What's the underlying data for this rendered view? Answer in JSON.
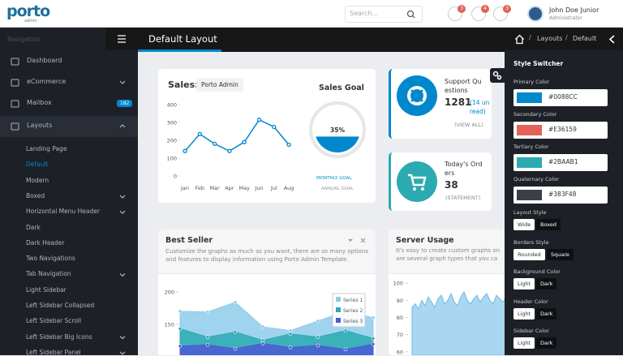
{
  "header": {
    "logo": "porto",
    "logo_sub": "admin",
    "search_placeholder": "Search...",
    "badges": [
      3,
      4,
      3
    ],
    "user_name": "John Doe Junior",
    "user_role": "Administrator"
  },
  "sidebar": {
    "heading": "Navigation",
    "items": [
      {
        "label": "Dashboard"
      },
      {
        "label": "eCommerce",
        "arrow": true
      },
      {
        "label": "Mailbox",
        "badge": 182
      },
      {
        "label": "Layouts",
        "active": true,
        "arrow": true
      }
    ],
    "subitems": [
      {
        "label": "Landing Page"
      },
      {
        "label": "Default",
        "active": true
      },
      {
        "label": "Modern"
      },
      {
        "label": "Boxed",
        "arrow": true
      },
      {
        "label": "Horizontal Menu Header",
        "arrow": true
      },
      {
        "label": "Dark"
      },
      {
        "label": "Dark Header"
      },
      {
        "label": "Two Navigations"
      },
      {
        "label": "Tab Navigation",
        "arrow": true
      },
      {
        "label": "Light Sidebar"
      },
      {
        "label": "Left Sidebar Collapsed"
      },
      {
        "label": "Left Sidebar Scroll"
      },
      {
        "label": "Left Sidebar Big Icons",
        "arrow": true
      },
      {
        "label": "Left Sidebar Panel",
        "arrow": true
      }
    ]
  },
  "page": {
    "title": "Default Layout",
    "breadcrumb": [
      "Layouts",
      "Default"
    ]
  },
  "sales": {
    "title": "Sales:",
    "selector": "Porto Admin",
    "chart": {
      "type": "line",
      "categories": [
        "Jan",
        "Feb",
        "Mar",
        "Apr",
        "May",
        "Jun",
        "Jul",
        "Aug"
      ],
      "values": [
        140,
        235,
        180,
        140,
        190,
        315,
        275,
        175
      ],
      "color": "#0088cc",
      "ylim": [
        0,
        400
      ],
      "yticks": [
        0,
        100,
        200,
        300,
        400
      ]
    },
    "goal_title": "Sales Goal",
    "goal": {
      "value": 35,
      "value_label": "35%",
      "color": "#0088cc"
    },
    "monthly": "MONTHLY GOAL",
    "annual": "ANNUAL GOAL"
  },
  "support": {
    "title": "Support Questions",
    "count": 1281,
    "unread": "(14 unread)",
    "link": "(VIEW ALL)"
  },
  "orders": {
    "title": "Today's Orders",
    "count": 38,
    "link": "(STATEMENT)"
  },
  "best_seller": {
    "title": "Best Seller",
    "description": "Customize the graphs as much as you want, there are so many options and features to display information using Porto Admin Template.",
    "chart": {
      "type": "area",
      "ylim": [
        102,
        210
      ],
      "yticks": [
        200,
        150
      ],
      "series": [
        {
          "name": "Series 1",
          "color": "#8fcbea",
          "values": [
            170,
            169,
            184,
            146,
            140,
            155,
            170,
            160
          ]
        },
        {
          "name": "Series 2",
          "color": "#2baab1",
          "values": [
            143,
            130,
            138,
            125,
            135,
            130,
            140,
            128
          ]
        },
        {
          "name": "Series 3",
          "color": "#4a5bd4",
          "values": [
            116,
            118,
            112,
            120,
            114,
            117,
            111,
            119
          ]
        }
      ]
    }
  },
  "server": {
    "title": "Server Usage",
    "description": [
      "It's easy to create custom graphs on",
      "are several graph types that you ca"
    ],
    "chart": {
      "type": "area",
      "color": "#a9d6f0",
      "ylim": [
        58,
        102
      ],
      "yticks": [
        100,
        90,
        80,
        70,
        60
      ],
      "values": [
        86,
        88,
        85,
        90,
        87,
        92,
        89,
        86,
        91,
        93,
        88,
        90,
        94,
        89,
        87,
        92,
        95,
        90,
        88,
        91,
        93,
        89,
        92,
        94,
        90,
        88,
        93,
        91,
        89,
        92
      ]
    }
  },
  "style_switcher": {
    "title": "Style Switcher",
    "colors": [
      {
        "label": "Primary Color",
        "value": "#0088CC"
      },
      {
        "label": "Secondary Color",
        "value": "#E36159"
      },
      {
        "label": "Tertiary Color",
        "value": "#2BAAB1"
      },
      {
        "label": "Quaternary Color",
        "value": "#383F48"
      }
    ],
    "options": [
      {
        "label": "Layout Style",
        "choices": [
          "Wide",
          "Boxed"
        ],
        "selected": 0
      },
      {
        "label": "Borders Style",
        "choices": [
          "Rounded",
          "Square"
        ],
        "selected": 0
      },
      {
        "label": "Background Color",
        "choices": [
          "Light",
          "Dark"
        ],
        "selected": 0
      },
      {
        "label": "Header Color",
        "choices": [
          "Light",
          "Dark"
        ],
        "selected": 0
      },
      {
        "label": "Sidebar Color",
        "choices": [
          "Light",
          "Dark"
        ],
        "selected": 0
      }
    ]
  }
}
